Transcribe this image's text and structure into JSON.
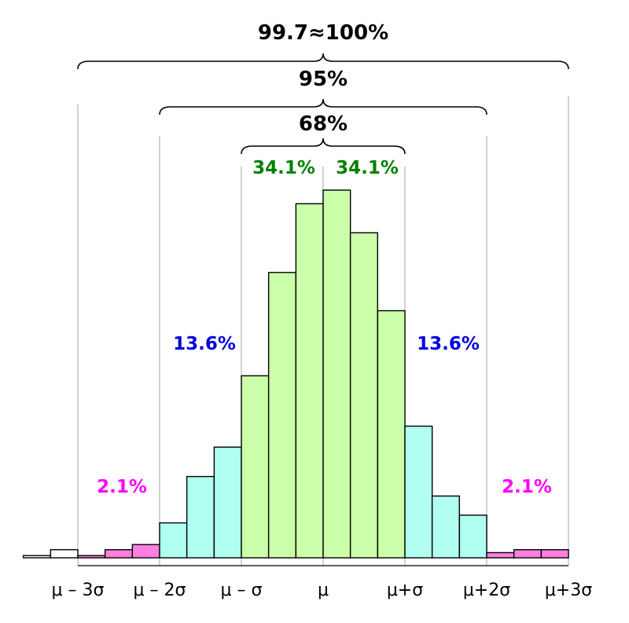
{
  "chart_data": {
    "type": "bar",
    "title": "",
    "xlabel": "",
    "ylabel": "",
    "x_ticks": [
      "μ – 3σ",
      "μ – 2σ",
      "μ – σ",
      "μ",
      "μ+σ",
      "μ+2σ",
      "μ+3σ"
    ],
    "tick_positions": [
      -3,
      -2,
      -1,
      0,
      1,
      2,
      3
    ],
    "bin_width": 0.3333,
    "bins": [
      {
        "left": -3.667,
        "value": 0.006,
        "region": "outside"
      },
      {
        "left": -3.333,
        "value": 0.022,
        "region": "outside"
      },
      {
        "left": -3.0,
        "value": 0.006,
        "region": "2.1"
      },
      {
        "left": -2.667,
        "value": 0.022,
        "region": "2.1"
      },
      {
        "left": -2.333,
        "value": 0.036,
        "region": "2.1"
      },
      {
        "left": -2.0,
        "value": 0.095,
        "region": "13.6"
      },
      {
        "left": -1.667,
        "value": 0.221,
        "region": "13.6"
      },
      {
        "left": -1.333,
        "value": 0.301,
        "region": "13.6"
      },
      {
        "left": -1.0,
        "value": 0.495,
        "region": "34.1"
      },
      {
        "left": -0.667,
        "value": 0.776,
        "region": "34.1"
      },
      {
        "left": -0.333,
        "value": 0.963,
        "region": "34.1"
      },
      {
        "left": 0.0,
        "value": 1.0,
        "region": "34.1"
      },
      {
        "left": 0.333,
        "value": 0.884,
        "region": "34.1"
      },
      {
        "left": 0.667,
        "value": 0.672,
        "region": "34.1"
      },
      {
        "left": 1.0,
        "value": 0.358,
        "region": "13.6"
      },
      {
        "left": 1.333,
        "value": 0.168,
        "region": "13.6"
      },
      {
        "left": 1.667,
        "value": 0.116,
        "region": "13.6"
      },
      {
        "left": 2.0,
        "value": 0.014,
        "region": "2.1"
      },
      {
        "left": 2.333,
        "value": 0.022,
        "region": "2.1"
      },
      {
        "left": 2.667,
        "value": 0.022,
        "region": "2.1"
      }
    ],
    "ylim": [
      0,
      1.0
    ],
    "xlim": [
      -3.667,
      3.0
    ],
    "region_labels": {
      "left_2_1": "2.1%",
      "left_13_6": "13.6%",
      "left_34_1": "34.1%",
      "right_34_1": "34.1%",
      "right_13_6": "13.6%",
      "right_2_1": "2.1%"
    },
    "brackets": [
      {
        "label": "99.7≈100%",
        "from": -3,
        "to": 3
      },
      {
        "label": "95%",
        "from": -2,
        "to": 2
      },
      {
        "label": "68%",
        "from": -1,
        "to": 1
      }
    ],
    "colors": {
      "outside": "#ffffff",
      "2.1": "#ff80e0",
      "13.6": "#b0fff0",
      "34.1": "#ccffaa",
      "label_2_1": "#ff00ff",
      "label_13_6": "#0000dd",
      "label_34_1": "#008000",
      "bracket": "#000000",
      "gridline": "#b3b3b3"
    }
  }
}
